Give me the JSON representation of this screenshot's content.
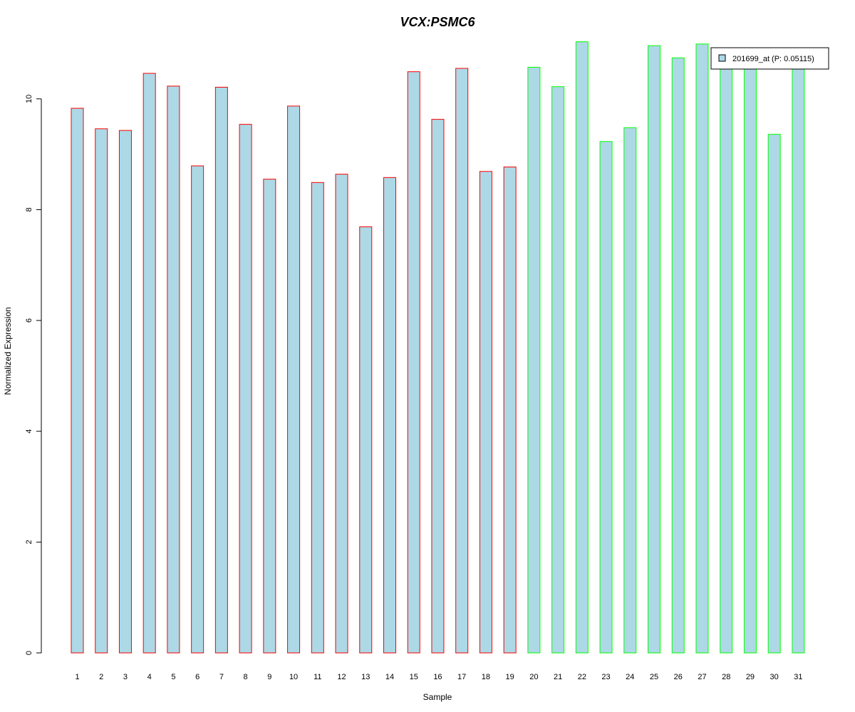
{
  "chart_data": {
    "type": "bar",
    "title": "VCX:PSMC6",
    "title_color": "#0000CC",
    "xlabel": "Sample",
    "ylabel": "Normalized Expression",
    "ylim": [
      0,
      11
    ],
    "y_ticks": [
      0,
      2,
      4,
      6,
      8,
      10
    ],
    "grid": false,
    "legend_position": "top-right",
    "categories": [
      "1",
      "2",
      "3",
      "4",
      "5",
      "6",
      "7",
      "8",
      "9",
      "10",
      "11",
      "12",
      "13",
      "14",
      "15",
      "16",
      "17",
      "18",
      "19",
      "20",
      "21",
      "22",
      "23",
      "24",
      "25",
      "26",
      "27",
      "28",
      "29",
      "30",
      "31"
    ],
    "series": [
      {
        "name": "201699_at (P: 0.05115)",
        "fill_color": "#ADD8E6",
        "values": [
          9.83,
          9.46,
          9.43,
          10.46,
          10.23,
          8.79,
          10.21,
          9.54,
          8.55,
          9.87,
          8.49,
          8.64,
          7.69,
          8.58,
          10.49,
          9.63,
          10.55,
          8.69,
          8.77,
          10.57,
          10.22,
          11.03,
          9.23,
          9.48,
          10.96,
          10.74,
          10.99,
          10.6,
          10.6,
          9.36,
          10.6
        ]
      }
    ],
    "group_border_colors": [
      "#FF0000",
      "#FF0000",
      "#FF0000",
      "#FF0000",
      "#FF0000",
      "#FF0000",
      "#FF0000",
      "#FF0000",
      "#FF0000",
      "#FF0000",
      "#FF0000",
      "#FF0000",
      "#FF0000",
      "#FF0000",
      "#FF0000",
      "#FF0000",
      "#FF0000",
      "#FF0000",
      "#FF0000",
      "#00FF00",
      "#00FF00",
      "#00FF00",
      "#00FF00",
      "#00FF00",
      "#00FF00",
      "#00FF00",
      "#00FF00",
      "#00FF00",
      "#00FF00",
      "#00FF00",
      "#00FF00"
    ]
  }
}
